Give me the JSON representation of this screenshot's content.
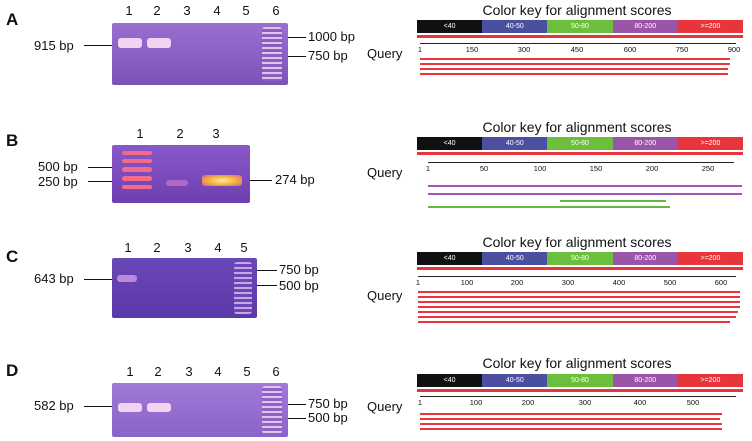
{
  "panels": [
    {
      "letter": "A",
      "lanes": [
        "1",
        "2",
        "3",
        "4",
        "5",
        "6"
      ],
      "left_label": "915 bp",
      "right_labels": [
        "1000 bp",
        "750 bp"
      ],
      "colorkey_title": "Color key for alignment scores",
      "colorkey_segments": [
        "<40",
        "40-50",
        "50-80",
        "80-200",
        ">=200"
      ],
      "query_label": "Query",
      "axis_ticks": [
        "1",
        "150",
        "300",
        "450",
        "600",
        "750",
        "900"
      ]
    },
    {
      "letter": "B",
      "lanes": [
        "1",
        "2",
        "3"
      ],
      "left_labels": [
        "500 bp",
        "250 bp"
      ],
      "right_label": "274 bp",
      "colorkey_title": "Color key for alignment scores",
      "colorkey_segments": [
        "<40",
        "40-50",
        "50-80",
        "80-200",
        ">=200"
      ],
      "query_label": "Query",
      "axis_ticks": [
        "1",
        "50",
        "100",
        "150",
        "200",
        "250"
      ]
    },
    {
      "letter": "C",
      "lanes": [
        "1",
        "2",
        "3",
        "4",
        "5"
      ],
      "left_label": "643 bp",
      "right_labels": [
        "750 bp",
        "500 bp"
      ],
      "colorkey_title": "Color key for alignment scores",
      "colorkey_segments": [
        "<40",
        "40-50",
        "50-80",
        "80-200",
        ">=200"
      ],
      "query_label": "Query",
      "axis_ticks": [
        "1",
        "100",
        "200",
        "300",
        "400",
        "500",
        "600"
      ]
    },
    {
      "letter": "D",
      "lanes": [
        "1",
        "2",
        "3",
        "4",
        "5",
        "6"
      ],
      "left_label": "582 bp",
      "right_labels": [
        "750 bp",
        "500 bp"
      ],
      "colorkey_title": "Color key for alignment scores",
      "colorkey_segments": [
        "<40",
        "40-50",
        "50-80",
        "80-200",
        ">=200"
      ],
      "query_label": "Query",
      "axis_ticks": [
        "1",
        "100",
        "200",
        "300",
        "400",
        "500"
      ]
    }
  ],
  "colors": {
    "key": [
      "#111111",
      "#4b4fa0",
      "#6cbf3c",
      "#9a55a8",
      "#e8353b"
    ],
    "gel": "#8a5fc4",
    "band": "#f2d0f0",
    "hit_red": "#e8353b",
    "hit_purple": "#a253b5",
    "hit_green": "#66b843"
  }
}
